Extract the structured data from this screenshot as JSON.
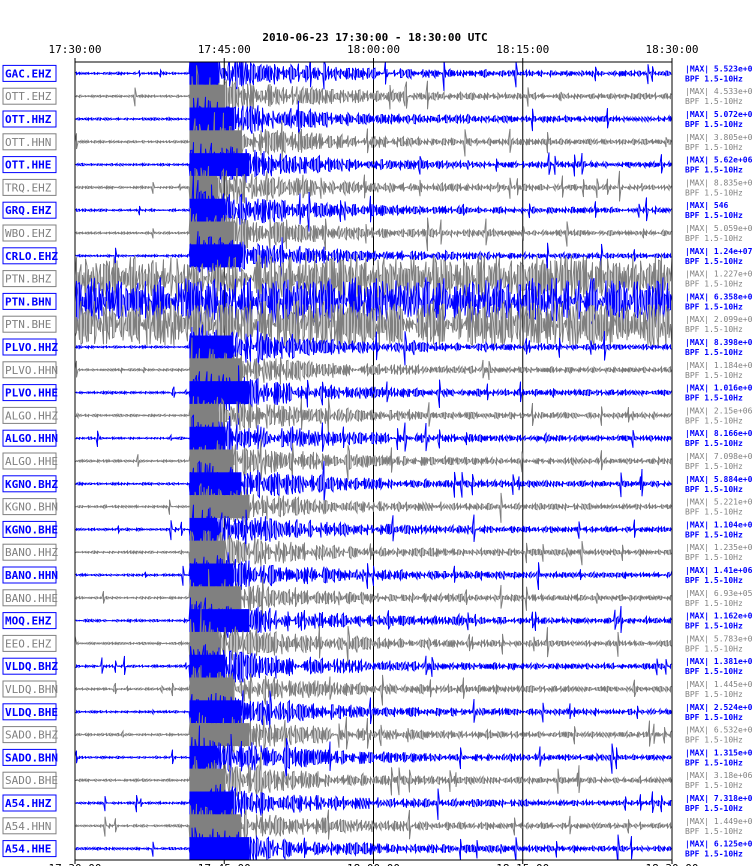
{
  "chart_data": {
    "type": "seismogram",
    "title": "2010-06-23 17:30:00 - 18:30:00 UTC",
    "x_ticks": [
      "17:30:00",
      "17:45:00",
      "18:00:00",
      "18:15:00",
      "18:30:00"
    ],
    "x_range_minutes": [
      0,
      60
    ],
    "event_onset_minute": 11.5,
    "filter_label": "BPF 1.5-10Hz",
    "colors": {
      "blue": "#0000ff",
      "gray": "#808080"
    },
    "channels": [
      {
        "name": "GAC.EHZ",
        "color": "blue",
        "imax": "|MAX| 5.523e+0"
      },
      {
        "name": "OTT.EHZ",
        "color": "gray",
        "imax": "|MAX| 4.533e+0"
      },
      {
        "name": "OTT.HHZ",
        "color": "blue",
        "imax": "|MAX| 5.072e+0"
      },
      {
        "name": "OTT.HHN",
        "color": "gray",
        "imax": "|MAX| 3.805e+0"
      },
      {
        "name": "OTT.HHE",
        "color": "blue",
        "imax": "|MAX| 5.62e+06"
      },
      {
        "name": "TRQ.EHZ",
        "color": "gray",
        "imax": "|MAX| 8.835e+0"
      },
      {
        "name": "GRQ.EHZ",
        "color": "blue",
        "imax": "|MAX|   546"
      },
      {
        "name": "WBO.EHZ",
        "color": "gray",
        "imax": "|MAX| 5.059e+0"
      },
      {
        "name": "CRLO.EHZ",
        "color": "blue",
        "imax": "|MAX| 1.24e+07"
      },
      {
        "name": "PTN.BHZ",
        "color": "gray",
        "imax": "|MAX| 1.227e+0"
      },
      {
        "name": "PTN.BHN",
        "color": "blue",
        "imax": "|MAX| 6.358e+0"
      },
      {
        "name": "PTN.BHE",
        "color": "gray",
        "imax": "|MAX| 2.099e+0"
      },
      {
        "name": "PLVO.HHZ",
        "color": "blue",
        "imax": "|MAX| 8.398e+0"
      },
      {
        "name": "PLVO.HHN",
        "color": "gray",
        "imax": "|MAX| 1.184e+0"
      },
      {
        "name": "PLVO.HHE",
        "color": "blue",
        "imax": "|MAX| 1.016e+0"
      },
      {
        "name": "ALGO.HHZ",
        "color": "gray",
        "imax": "|MAX| 2.15e+06"
      },
      {
        "name": "ALGO.HHN",
        "color": "blue",
        "imax": "|MAX| 8.166e+0"
      },
      {
        "name": "ALGO.HHE",
        "color": "gray",
        "imax": "|MAX| 7.098e+0"
      },
      {
        "name": "KGNO.BHZ",
        "color": "blue",
        "imax": "|MAX| 5.884e+0"
      },
      {
        "name": "KGNO.BHN",
        "color": "gray",
        "imax": "|MAX| 5.221e+0"
      },
      {
        "name": "KGNO.BHE",
        "color": "blue",
        "imax": "|MAX| 1.104e+0"
      },
      {
        "name": "BANO.HHZ",
        "color": "gray",
        "imax": "|MAX| 1.235e+0"
      },
      {
        "name": "BANO.HHN",
        "color": "blue",
        "imax": "|MAX| 1.41e+06"
      },
      {
        "name": "BANO.HHE",
        "color": "gray",
        "imax": "|MAX| 6.93e+05"
      },
      {
        "name": "MOQ.EHZ",
        "color": "blue",
        "imax": "|MAX| 1.162e+0"
      },
      {
        "name": "EEO.EHZ",
        "color": "gray",
        "imax": "|MAX| 5.783e+0"
      },
      {
        "name": "VLDQ.BHZ",
        "color": "blue",
        "imax": "|MAX| 1.381e+0"
      },
      {
        "name": "VLDQ.BHN",
        "color": "gray",
        "imax": "|MAX| 1.445e+0"
      },
      {
        "name": "VLDQ.BHE",
        "color": "blue",
        "imax": "|MAX| 2.524e+0"
      },
      {
        "name": "SADO.BHZ",
        "color": "gray",
        "imax": "|MAX| 6.532e+0"
      },
      {
        "name": "SADO.BHN",
        "color": "blue",
        "imax": "|MAX| 1.315e+0"
      },
      {
        "name": "SADO.BHE",
        "color": "gray",
        "imax": "|MAX| 3.18e+06"
      },
      {
        "name": "A54.HHZ",
        "color": "blue",
        "imax": "|MAX| 7.318e+0"
      },
      {
        "name": "A54.HHN",
        "color": "gray",
        "imax": "|MAX| 1.449e+0"
      },
      {
        "name": "A54.HHE",
        "color": "blue",
        "imax": "|MAX| 6.125e+0"
      }
    ]
  }
}
